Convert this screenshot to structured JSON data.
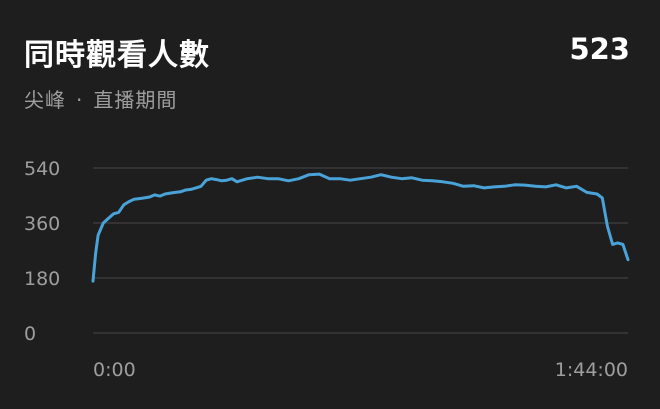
{
  "header": {
    "title": "同時觀看人數",
    "value": "523",
    "subtitle_left": "尖峰",
    "subtitle_sep": "·",
    "subtitle_right": "直播期間"
  },
  "colors": {
    "background": "#1e1e1e",
    "line": "#4aa3d8",
    "grid": "#3a3a3a",
    "muted_text": "#9e9e9e"
  },
  "chart_data": {
    "type": "line",
    "title": "同時觀看人數",
    "xlabel": "",
    "ylabel": "",
    "xlim": [
      0,
      104
    ],
    "ylim": [
      0,
      540
    ],
    "yticks": [
      0,
      180,
      360,
      540
    ],
    "ytick_labels": [
      "0",
      "180",
      "360",
      "540"
    ],
    "xtick_labels": [
      "0:00",
      "1:44:00"
    ],
    "grid": true,
    "series": [
      {
        "x": [
          0,
          0.5,
          1,
          2,
          3,
          4,
          5,
          6,
          7,
          8,
          9,
          10,
          11,
          12,
          13,
          14,
          15,
          16,
          17,
          18,
          19,
          20,
          21,
          22,
          23,
          24,
          25,
          26,
          27,
          28,
          29,
          30,
          32,
          34,
          36,
          38,
          40,
          42,
          44,
          46,
          48,
          50,
          52,
          54,
          56,
          58,
          60,
          62,
          64,
          66,
          68,
          70,
          72,
          74,
          76,
          78,
          80,
          82,
          84,
          86,
          88,
          90,
          92,
          94,
          96,
          98,
          99,
          100,
          101,
          102,
          103,
          104
        ],
        "y": [
          170,
          260,
          320,
          360,
          375,
          390,
          395,
          420,
          430,
          438,
          440,
          442,
          445,
          452,
          448,
          455,
          458,
          460,
          462,
          468,
          470,
          475,
          480,
          500,
          505,
          502,
          498,
          500,
          505,
          495,
          500,
          505,
          510,
          505,
          505,
          498,
          505,
          518,
          520,
          505,
          505,
          500,
          505,
          510,
          518,
          510,
          505,
          508,
          500,
          498,
          495,
          490,
          480,
          482,
          475,
          478,
          480,
          485,
          484,
          480,
          478,
          485,
          475,
          480,
          460,
          455,
          442,
          350,
          290,
          295,
          290,
          240
        ]
      }
    ]
  }
}
